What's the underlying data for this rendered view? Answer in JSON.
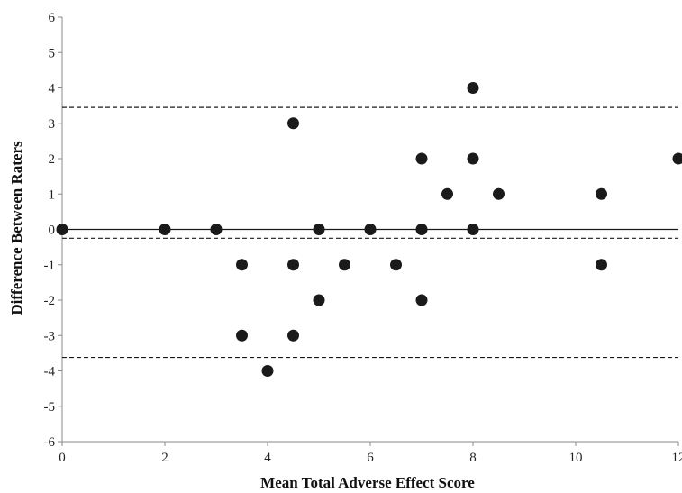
{
  "chart_data": {
    "type": "scatter",
    "title": "",
    "xlabel": "Mean Total Adverse Effect Score",
    "ylabel": "Difference Between Raters",
    "xlim": [
      0,
      12
    ],
    "ylim": [
      -6,
      6
    ],
    "x_ticks": [
      "0",
      "2",
      "4",
      "6",
      "8",
      "10",
      "12"
    ],
    "y_ticks": [
      "6",
      "5",
      "4",
      "3",
      "2",
      "1",
      "0",
      "-1",
      "-2",
      "-3",
      "-4",
      "-5",
      "-6"
    ],
    "grid": false,
    "legend": "none",
    "series": [
      {
        "points": [
          {
            "x": 0,
            "y": 0
          },
          {
            "x": 2,
            "y": 0
          },
          {
            "x": 3,
            "y": 0
          },
          {
            "x": 3.5,
            "y": -1
          },
          {
            "x": 3.5,
            "y": -3
          },
          {
            "x": 4,
            "y": -4
          },
          {
            "x": 4.5,
            "y": 3
          },
          {
            "x": 4.5,
            "y": -1
          },
          {
            "x": 4.5,
            "y": -3
          },
          {
            "x": 5,
            "y": 0
          },
          {
            "x": 5,
            "y": -2
          },
          {
            "x": 5.5,
            "y": -1
          },
          {
            "x": 6,
            "y": 0
          },
          {
            "x": 6.5,
            "y": -1
          },
          {
            "x": 7,
            "y": 2
          },
          {
            "x": 7,
            "y": 0
          },
          {
            "x": 7,
            "y": -2
          },
          {
            "x": 7.5,
            "y": 1
          },
          {
            "x": 8,
            "y": 4
          },
          {
            "x": 8,
            "y": 2
          },
          {
            "x": 8,
            "y": 0
          },
          {
            "x": 8.5,
            "y": 1
          },
          {
            "x": 10.5,
            "y": 1
          },
          {
            "x": 10.5,
            "y": -1
          },
          {
            "x": 12,
            "y": 2
          }
        ]
      }
    ],
    "reference_lines": [
      {
        "kind": "zero",
        "y": 0,
        "style": "solid"
      },
      {
        "kind": "mean_difference",
        "y": -0.25,
        "style": "dashed"
      },
      {
        "kind": "upper_limit_of_agreement",
        "y": 3.45,
        "style": "dashed"
      },
      {
        "kind": "lower_limit_of_agreement",
        "y": -3.62,
        "style": "dashed"
      }
    ],
    "colors": {
      "points": "#1a1a1a",
      "lines": "#1a1a1a",
      "axis": "#888888"
    }
  }
}
